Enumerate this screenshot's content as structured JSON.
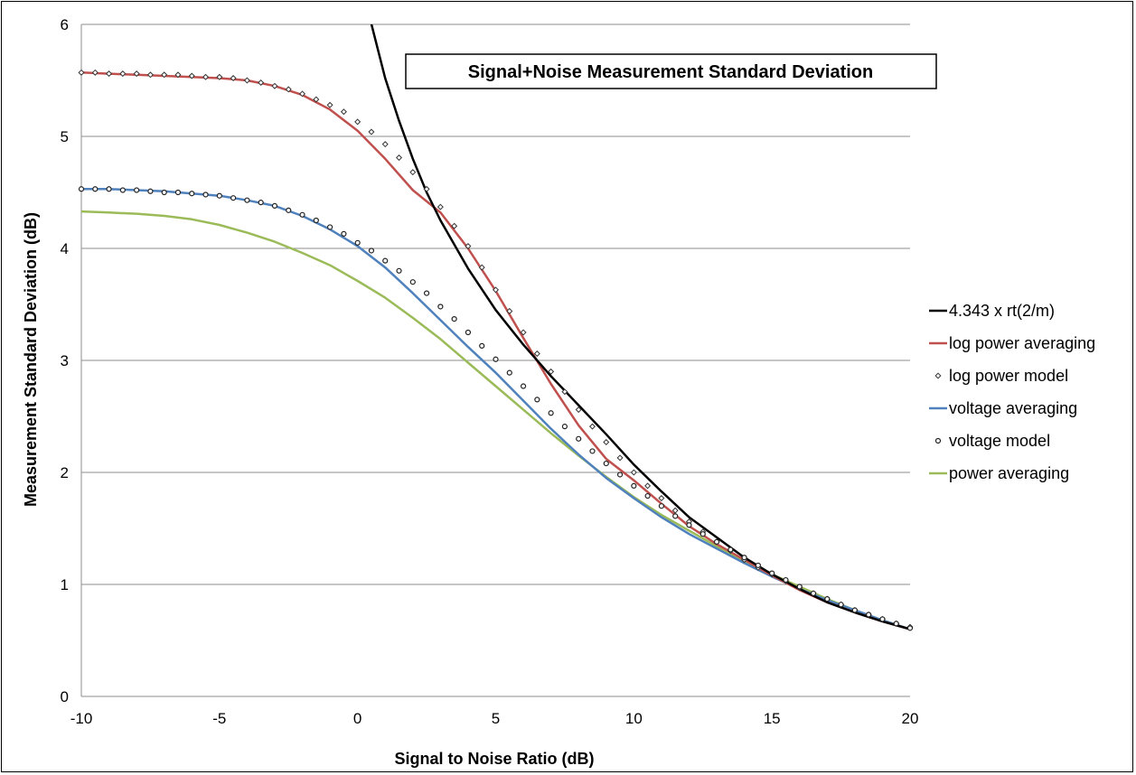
{
  "chart_data": {
    "type": "line",
    "title": "Signal+Noise  Measurement Standard Deviation",
    "xlabel": "Signal to Noise Ratio (dB)",
    "ylabel": "Measurement  Standard Deviation (dB)",
    "xlim": [
      -10,
      20
    ],
    "ylim": [
      0,
      6
    ],
    "xticks": [
      -10,
      -5,
      0,
      5,
      10,
      15,
      20
    ],
    "yticks": [
      0,
      1,
      2,
      3,
      4,
      5,
      6
    ],
    "grid": "horizontal",
    "legend_position": "right",
    "series": [
      {
        "name": "4.343 x rt(2/m)",
        "style": "line",
        "color": "#000000",
        "x": [
          0.4,
          1,
          1.5,
          2,
          2.5,
          3,
          4,
          5,
          6,
          7,
          8,
          9,
          10,
          11,
          12,
          13,
          14,
          15,
          16,
          17,
          18,
          19,
          20
        ],
        "y": [
          6.1,
          5.52,
          5.14,
          4.8,
          4.5,
          4.25,
          3.82,
          3.45,
          3.14,
          2.86,
          2.6,
          2.34,
          2.07,
          1.83,
          1.6,
          1.42,
          1.24,
          1.09,
          0.96,
          0.84,
          0.75,
          0.67,
          0.6
        ]
      },
      {
        "name": "log power averaging",
        "style": "line",
        "color": "#c0504d",
        "x": [
          -10,
          -9,
          -8,
          -7,
          -6,
          -5,
          -4,
          -3,
          -2,
          -1,
          0,
          1,
          2,
          3,
          4,
          5,
          6,
          7,
          8,
          9,
          10,
          11,
          12,
          13,
          14,
          15,
          16,
          17,
          18,
          19,
          20
        ],
        "y": [
          5.57,
          5.56,
          5.55,
          5.54,
          5.53,
          5.52,
          5.5,
          5.45,
          5.37,
          5.24,
          5.05,
          4.8,
          4.52,
          4.32,
          4.0,
          3.62,
          3.2,
          2.79,
          2.42,
          2.12,
          1.93,
          1.72,
          1.52,
          1.36,
          1.22,
          1.08,
          0.95,
          0.84,
          0.75,
          0.67,
          0.6
        ]
      },
      {
        "name": "log power model",
        "style": "markers",
        "marker": "diamond",
        "color": "#000000",
        "x": [
          -10,
          -9.5,
          -9,
          -8.5,
          -8,
          -7.5,
          -7,
          -6.5,
          -6,
          -5.5,
          -5,
          -4.5,
          -4,
          -3.5,
          -3,
          -2.5,
          -2,
          -1.5,
          -1,
          -0.5,
          0,
          0.5,
          1,
          1.5,
          2,
          2.5,
          3,
          3.5,
          4,
          4.5,
          5,
          5.5,
          6,
          6.5,
          7,
          7.5,
          8,
          8.5,
          9,
          9.5,
          10,
          10.5,
          11,
          11.5,
          12,
          12.5,
          13,
          13.5,
          14,
          14.5,
          15,
          15.5,
          16,
          16.5,
          17,
          17.5,
          18,
          18.5,
          19,
          19.5,
          20
        ],
        "y": [
          5.57,
          5.57,
          5.56,
          5.56,
          5.56,
          5.55,
          5.55,
          5.55,
          5.54,
          5.53,
          5.53,
          5.52,
          5.5,
          5.48,
          5.45,
          5.42,
          5.38,
          5.33,
          5.28,
          5.22,
          5.13,
          5.04,
          4.93,
          4.81,
          4.68,
          4.53,
          4.37,
          4.2,
          4.02,
          3.83,
          3.63,
          3.44,
          3.25,
          3.06,
          2.9,
          2.72,
          2.56,
          2.41,
          2.27,
          2.13,
          2.0,
          1.88,
          1.77,
          1.66,
          1.56,
          1.47,
          1.38,
          1.3,
          1.22,
          1.15,
          1.09,
          1.03,
          0.97,
          0.92,
          0.87,
          0.82,
          0.77,
          0.73,
          0.69,
          0.65,
          0.62
        ]
      },
      {
        "name": "voltage averaging",
        "style": "line",
        "color": "#4f81bd",
        "x": [
          -10,
          -9,
          -8,
          -7,
          -6,
          -5,
          -4,
          -3,
          -2,
          -1,
          0,
          1,
          2,
          3,
          4,
          5,
          6,
          7,
          8,
          9,
          10,
          11,
          12,
          13,
          14,
          15,
          16,
          17,
          18,
          19,
          20
        ],
        "y": [
          4.53,
          4.53,
          4.52,
          4.51,
          4.49,
          4.47,
          4.43,
          4.38,
          4.29,
          4.17,
          4.02,
          3.83,
          3.6,
          3.36,
          3.12,
          2.89,
          2.64,
          2.39,
          2.16,
          1.95,
          1.77,
          1.6,
          1.45,
          1.32,
          1.19,
          1.07,
          0.96,
          0.86,
          0.77,
          0.68,
          0.6
        ]
      },
      {
        "name": "voltage model",
        "style": "markers",
        "marker": "circle",
        "color": "#000000",
        "x": [
          -10,
          -9.5,
          -9,
          -8.5,
          -8,
          -7.5,
          -7,
          -6.5,
          -6,
          -5.5,
          -5,
          -4.5,
          -4,
          -3.5,
          -3,
          -2.5,
          -2,
          -1.5,
          -1,
          -0.5,
          0,
          0.5,
          1,
          1.5,
          2,
          2.5,
          3,
          3.5,
          4,
          4.5,
          5,
          5.5,
          6,
          6.5,
          7,
          7.5,
          8,
          8.5,
          9,
          9.5,
          10,
          10.5,
          11,
          11.5,
          12,
          12.5,
          13,
          13.5,
          14,
          14.5,
          15,
          15.5,
          16,
          16.5,
          17,
          17.5,
          18,
          18.5,
          19,
          19.5,
          20
        ],
        "y": [
          4.53,
          4.53,
          4.53,
          4.52,
          4.52,
          4.51,
          4.5,
          4.5,
          4.49,
          4.48,
          4.47,
          4.45,
          4.43,
          4.41,
          4.38,
          4.34,
          4.3,
          4.25,
          4.19,
          4.13,
          4.05,
          3.98,
          3.89,
          3.8,
          3.7,
          3.6,
          3.48,
          3.37,
          3.25,
          3.13,
          3.01,
          2.89,
          2.77,
          2.65,
          2.53,
          2.41,
          2.3,
          2.19,
          2.08,
          1.98,
          1.88,
          1.79,
          1.7,
          1.61,
          1.53,
          1.45,
          1.38,
          1.31,
          1.24,
          1.17,
          1.1,
          1.04,
          0.98,
          0.92,
          0.87,
          0.82,
          0.77,
          0.73,
          0.69,
          0.65,
          0.61
        ]
      },
      {
        "name": "power averaging",
        "style": "line",
        "color": "#9bbb59",
        "x": [
          -10,
          -9,
          -8,
          -7,
          -6,
          -5,
          -4,
          -3,
          -2,
          -1,
          0,
          1,
          2,
          3,
          4,
          5,
          6,
          7,
          8,
          9,
          10,
          11,
          12,
          13,
          14,
          15,
          16,
          17,
          18,
          19,
          20
        ],
        "y": [
          4.33,
          4.32,
          4.31,
          4.29,
          4.26,
          4.21,
          4.14,
          4.06,
          3.96,
          3.85,
          3.71,
          3.56,
          3.38,
          3.19,
          2.98,
          2.77,
          2.56,
          2.35,
          2.15,
          1.96,
          1.78,
          1.62,
          1.48,
          1.34,
          1.21,
          1.09,
          0.98,
          0.87,
          0.77,
          0.68,
          0.6
        ]
      }
    ]
  }
}
